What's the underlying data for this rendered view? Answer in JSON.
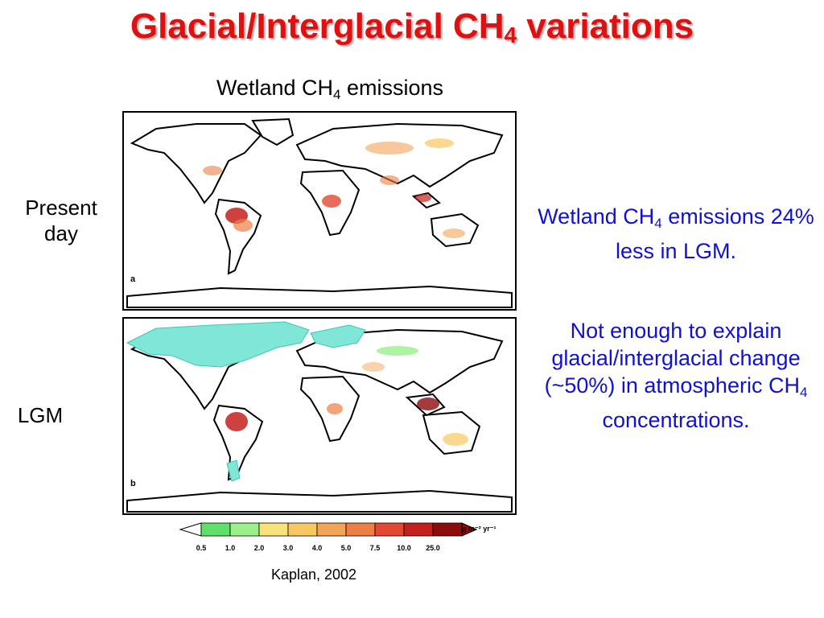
{
  "slide": {
    "title_main": "Glacial/Interglacial CH",
    "title_sub": "4",
    "title_tail": " variations",
    "map_title_main": "Wetland CH",
    "map_title_sub": "4",
    "map_title_tail": " emissions",
    "label_present_line1": "Present",
    "label_present_line2": "day",
    "label_lgm": "LGM",
    "panel_a_letter": "a",
    "panel_b_letter": "b",
    "note1_main": "Wetland CH",
    "note1_sub": "4",
    "note1_tail": " emissions 24% less in LGM.",
    "note2_main": "Not enough to explain glacial/interglacial change (~50%) in atmospheric CH",
    "note2_sub": "4",
    "note2_tail": " concentrations.",
    "credit": "Kaplan, 2002"
  },
  "colorbar": {
    "unit": "g m⁻² yr⁻¹",
    "ticks": [
      "0.5",
      "1.0",
      "2.0",
      "3.0",
      "4.0",
      "5.0",
      "7.5",
      "10.0",
      "25.0"
    ],
    "colors": [
      "#5ee06a",
      "#9af08a",
      "#f8e27a",
      "#f8c860",
      "#f4a456",
      "#ee7e44",
      "#e44832",
      "#c4201c",
      "#8c0c0c"
    ]
  },
  "colors": {
    "title": "#e01010",
    "note": "#1010d8",
    "ice": "#7fe6d8",
    "land": "#ffffff"
  }
}
